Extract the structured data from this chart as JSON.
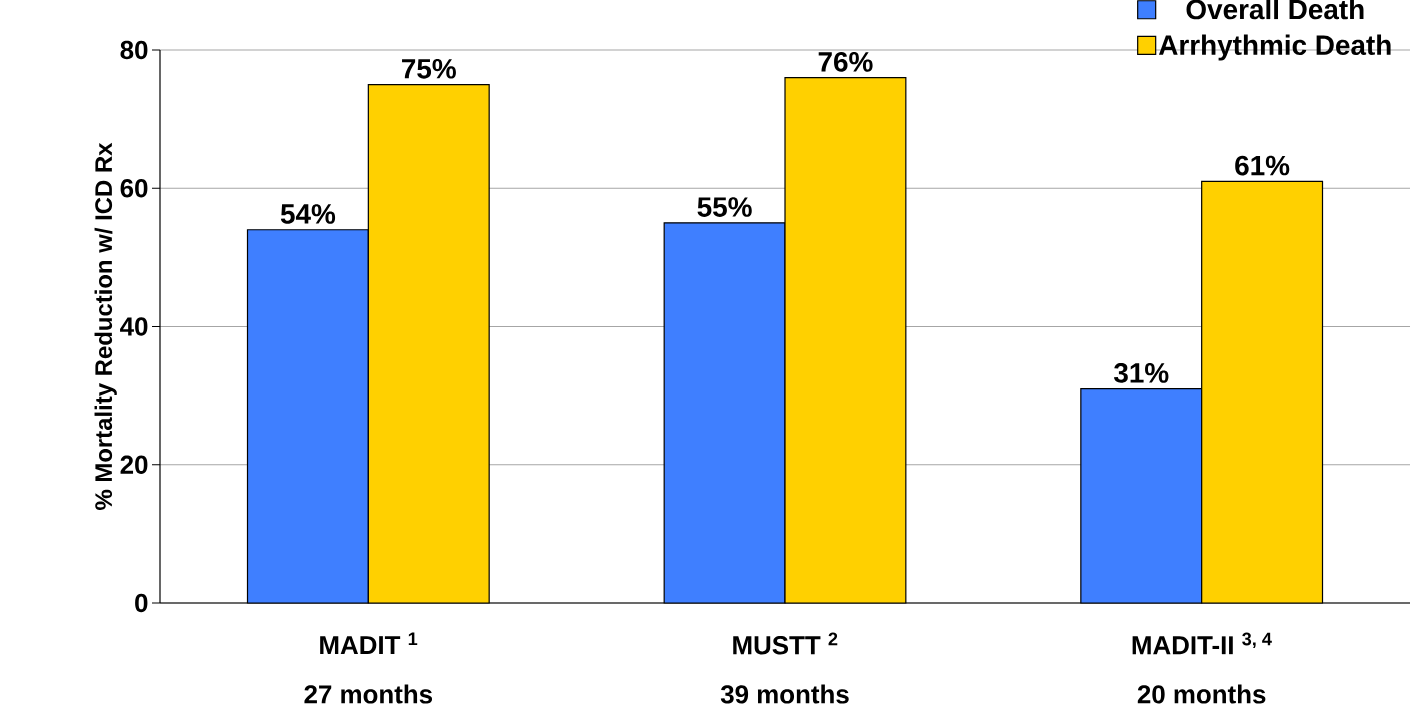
{
  "chart_data": {
    "type": "bar",
    "ylabel": "% Mortality Reduction w/ ICD Rx",
    "categories": [
      "MADIT $^{1}$",
      "MUSTT $^{2}$",
      "MADIT-II $^{3, 4}$"
    ],
    "annotations": [
      "27 months",
      "39 months",
      "20 months"
    ],
    "series": [
      {
        "name": "Overall Death",
        "color": "#3f7fff",
        "values": [
          54,
          55,
          31
        ],
        "value_labels": [
          "54%",
          "55%",
          "31%"
        ]
      },
      {
        "name": "Arrhythmic Death",
        "color": "#ffd000",
        "values": [
          75,
          76,
          61
        ],
        "value_labels": [
          "75%",
          "76%",
          "61%"
        ]
      }
    ],
    "ylim": [
      0,
      80
    ],
    "yticks": [
      0,
      20,
      40,
      60,
      80
    ],
    "grid": "y",
    "legend": "top right"
  }
}
